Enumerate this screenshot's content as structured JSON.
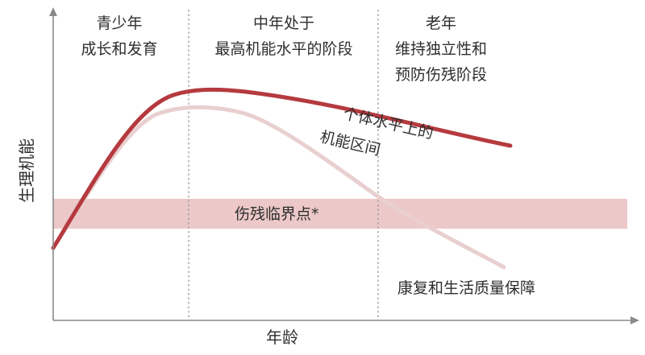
{
  "colors": {
    "band": "#ecc8c8",
    "main_curve": "#b53a3f",
    "lower_curve": "#e9cfcf",
    "axis": "#8a8a8a",
    "divider": "#9a9a9a",
    "text": "#2e2e2e"
  },
  "phases": [
    {
      "line1": "青少年",
      "line2": "成长和发育"
    },
    {
      "line1": "中年处于",
      "line2": "最高机能水平的阶段"
    },
    {
      "line1": "老年",
      "line2": "维持独立性和",
      "line3": "预防伤残阶段"
    }
  ],
  "annotations": {
    "range_line1": "个体水平上的",
    "range_line2": "机能区间",
    "disability_threshold": "伤残临界点*",
    "rehab": "康复和生活质量保障"
  },
  "axes": {
    "y_label": "生理机能",
    "x_label": "年龄"
  }
}
